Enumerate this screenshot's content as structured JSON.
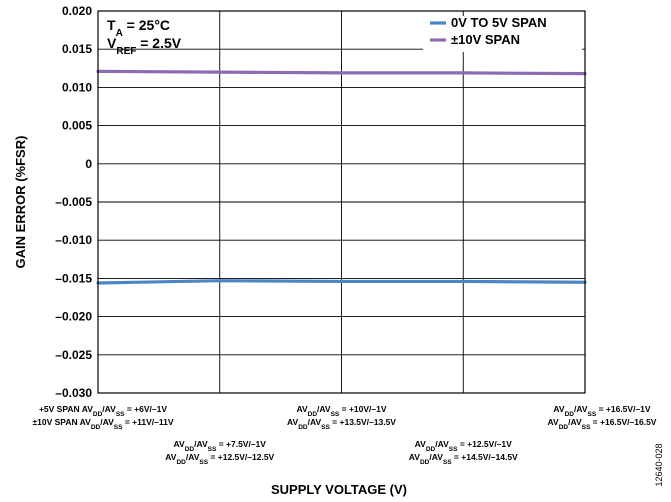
{
  "chart_data": {
    "type": "line",
    "xlabel": "SUPPLY VOLTAGE (V)",
    "ylabel": "GAIN ERROR (%FSR)",
    "ylim": [
      -0.03,
      0.02
    ],
    "yticks": [
      "0.020",
      "0.015",
      "0.010",
      "0.005",
      "0",
      "–0.005",
      "–0.010",
      "–0.015",
      "–0.020",
      "–0.025",
      "–0.030"
    ],
    "grid": true,
    "legend_position": "top-right",
    "conditions": {
      "ta": {
        "sym": "T",
        "sub": "A",
        "rest": " = 25°C"
      },
      "vref": {
        "sym": "V",
        "sub": "REF",
        "rest": " = 2.5V"
      }
    },
    "categories": [
      {
        "lines": [
          [
            {
              "t": "+5V SPAN AV"
            },
            {
              "t": "DD",
              "sub": true
            },
            {
              "t": "/AV"
            },
            {
              "t": "SS",
              "sub": true
            },
            {
              "t": " = +6V/–1V"
            }
          ],
          [
            {
              "t": "±10V SPAN AV"
            },
            {
              "t": "DD",
              "sub": true
            },
            {
              "t": "/AV"
            },
            {
              "t": "SS",
              "sub": true
            },
            {
              "t": " = +11V/–11V"
            }
          ]
        ]
      },
      {
        "lines": [
          [
            {
              "t": "AV"
            },
            {
              "t": "DD",
              "sub": true
            },
            {
              "t": "/AV"
            },
            {
              "t": "SS",
              "sub": true
            },
            {
              "t": " = +7.5V/–1V"
            }
          ],
          [
            {
              "t": "AV"
            },
            {
              "t": "DD",
              "sub": true
            },
            {
              "t": "/AV"
            },
            {
              "t": "SS",
              "sub": true
            },
            {
              "t": " = +12.5V/–12.5V"
            }
          ]
        ]
      },
      {
        "lines": [
          [
            {
              "t": "AV"
            },
            {
              "t": "DD",
              "sub": true
            },
            {
              "t": "/AV"
            },
            {
              "t": "SS",
              "sub": true
            },
            {
              "t": " = +10V/–1V"
            }
          ],
          [
            {
              "t": "AV"
            },
            {
              "t": "DD",
              "sub": true
            },
            {
              "t": "/AV"
            },
            {
              "t": "SS",
              "sub": true
            },
            {
              "t": " = +13.5V/–13.5V"
            }
          ]
        ]
      },
      {
        "lines": [
          [
            {
              "t": "AV"
            },
            {
              "t": "DD",
              "sub": true
            },
            {
              "t": "/AV"
            },
            {
              "t": "SS",
              "sub": true
            },
            {
              "t": " = +12.5V/–1V"
            }
          ],
          [
            {
              "t": "AV"
            },
            {
              "t": "DD",
              "sub": true
            },
            {
              "t": "/AV"
            },
            {
              "t": "SS",
              "sub": true
            },
            {
              "t": " = +14.5V/–14.5V"
            }
          ]
        ]
      },
      {
        "lines": [
          [
            {
              "t": "AV"
            },
            {
              "t": "DD",
              "sub": true
            },
            {
              "t": "/AV"
            },
            {
              "t": "SS",
              "sub": true
            },
            {
              "t": " = +16.5V/–1V"
            }
          ],
          [
            {
              "t": "AV"
            },
            {
              "t": "DD",
              "sub": true
            },
            {
              "t": "/AV"
            },
            {
              "t": "SS",
              "sub": true
            },
            {
              "t": " = +16.5V/–16.5V"
            }
          ]
        ]
      }
    ],
    "series": [
      {
        "name": "0V TO 5V SPAN",
        "color": "#4a86c5",
        "values": [
          -0.0156,
          -0.0153,
          -0.0154,
          -0.0154,
          -0.0155
        ]
      },
      {
        "name": "±10V SPAN",
        "color": "#8b6bb3",
        "values": [
          0.0121,
          0.012,
          0.0119,
          0.0119,
          0.0118
        ]
      }
    ]
  },
  "figure_id": "12640-028"
}
